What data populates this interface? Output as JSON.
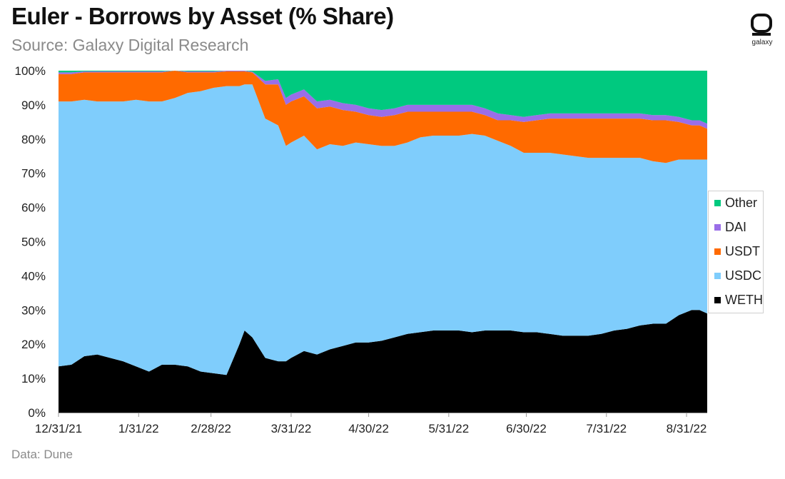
{
  "header": {
    "title": "Euler - Borrows by Asset (% Share)",
    "subtitle": "Source: Galaxy Digital Research",
    "logo_text": "galaxy"
  },
  "footer": {
    "source_note": "Data: Dune"
  },
  "chart_data": {
    "type": "area",
    "stacked": true,
    "percent": true,
    "title": "Euler - Borrows by Asset (% Share)",
    "subtitle": "Source: Galaxy Digital Research",
    "xlabel": "",
    "ylabel": "",
    "ylim": [
      0,
      100
    ],
    "yticks": [
      "0%",
      "10%",
      "20%",
      "30%",
      "40%",
      "50%",
      "60%",
      "70%",
      "80%",
      "90%",
      "100%"
    ],
    "x_tick_labels": [
      "12/31/21",
      "1/31/22",
      "2/28/22",
      "3/31/22",
      "4/30/22",
      "5/31/22",
      "6/30/22",
      "7/31/22",
      "8/31/22"
    ],
    "x_tick_days": [
      0,
      31,
      59,
      90,
      120,
      151,
      181,
      212,
      243
    ],
    "x_range_days": [
      0,
      251
    ],
    "x_days": [
      0,
      5,
      10,
      15,
      20,
      25,
      30,
      35,
      40,
      45,
      50,
      55,
      60,
      65,
      70,
      72,
      75,
      80,
      85,
      88,
      90,
      95,
      100,
      105,
      110,
      115,
      120,
      125,
      130,
      135,
      140,
      145,
      150,
      155,
      160,
      165,
      170,
      175,
      180,
      185,
      190,
      195,
      200,
      205,
      210,
      215,
      220,
      225,
      230,
      235,
      240,
      245,
      248,
      251
    ],
    "legend": {
      "position": "right",
      "order": [
        "Other",
        "DAI",
        "USDT",
        "USDC",
        "WETH"
      ]
    },
    "colors": {
      "WETH": "#000000",
      "USDC": "#7fcdfc",
      "USDT": "#ff6a00",
      "DAI": "#9a6ee8",
      "Other": "#00c97f"
    },
    "series": [
      {
        "name": "WETH",
        "values": [
          13.5,
          14,
          16.5,
          17,
          16,
          15,
          13.5,
          12,
          14,
          14,
          13.5,
          12,
          11.5,
          11,
          20,
          24,
          22,
          16,
          15,
          15,
          16,
          18,
          17,
          18.5,
          19.5,
          20.5,
          20.5,
          21,
          22,
          23,
          23.5,
          24,
          24,
          24,
          23.5,
          24,
          24,
          24,
          23.5,
          23.5,
          23,
          22.5,
          22.5,
          22.5,
          23,
          24,
          24.5,
          25.5,
          26,
          26,
          28.5,
          30,
          30,
          29
        ]
      },
      {
        "name": "USDC",
        "values": [
          77.5,
          77,
          75,
          74,
          75,
          76,
          78,
          79,
          77,
          78,
          80,
          82,
          83.5,
          84.5,
          75.5,
          72,
          74,
          70,
          69,
          63,
          63,
          63,
          60,
          60,
          58.5,
          58.5,
          58,
          57,
          56,
          56,
          57,
          57,
          57,
          57,
          58,
          57,
          55.5,
          54,
          52.5,
          52.5,
          53,
          53,
          52.5,
          52,
          51.5,
          50.5,
          50,
          49,
          47.5,
          47,
          45.5,
          44,
          44,
          45
        ]
      },
      {
        "name": "USDT",
        "values": [
          8,
          8,
          8,
          8.5,
          8.5,
          8.5,
          8,
          8.5,
          8.5,
          8,
          6,
          5.5,
          4.5,
          4.3,
          4.3,
          3.8,
          3.5,
          10,
          12,
          12,
          12,
          11.5,
          12,
          11,
          10.5,
          9,
          8.5,
          8.5,
          9,
          9,
          7.5,
          7,
          7,
          7,
          6.5,
          6,
          6,
          7.5,
          9,
          9.5,
          10,
          10.5,
          11,
          11.5,
          11.5,
          11.5,
          11.5,
          11.5,
          12,
          12.5,
          11,
          10,
          10,
          9
        ]
      },
      {
        "name": "DAI",
        "values": [
          0.5,
          0.5,
          0.3,
          0.3,
          0.3,
          0.3,
          0.3,
          0.3,
          0.3,
          0.3,
          0.3,
          0.3,
          0.3,
          0.2,
          0.2,
          0.2,
          0.2,
          1,
          1.5,
          2,
          2,
          2,
          2,
          2,
          2,
          2,
          2,
          2,
          2,
          2,
          2,
          2,
          2,
          2,
          2,
          2,
          2,
          1.5,
          1.5,
          1.5,
          1.5,
          1.5,
          1.5,
          1.5,
          1.5,
          1.5,
          1.5,
          1.5,
          1.5,
          1.5,
          1.5,
          1.5,
          1.5,
          1.5
        ]
      },
      {
        "name": "Other",
        "values": [
          0.5,
          0.5,
          0.2,
          0.2,
          0.2,
          0.2,
          0.2,
          0.2,
          0.2,
          0.2,
          0.2,
          0.2,
          0.2,
          0,
          0,
          0,
          0.3,
          3,
          2.5,
          8,
          7,
          5.5,
          9,
          8.5,
          9.5,
          10,
          11,
          11.5,
          11,
          10,
          10,
          10,
          10,
          10,
          10,
          11,
          12.5,
          13,
          13.5,
          13,
          12.5,
          12.5,
          12.5,
          12.5,
          12.5,
          12.5,
          12.5,
          12.5,
          13,
          13,
          13.5,
          14.5,
          14.5,
          15.5
        ]
      }
    ]
  }
}
